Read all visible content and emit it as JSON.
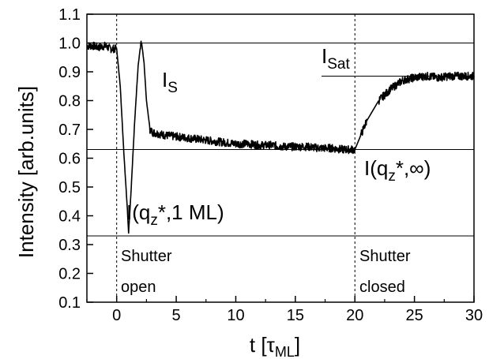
{
  "chart_data": {
    "type": "line",
    "xlabel": "t [τ",
    "xlabel_sub": "ML",
    "xlabel_close": "]",
    "ylabel": "Intensity [arb.units]",
    "xlim": [
      -2.5,
      30
    ],
    "ylim": [
      0.1,
      1.1
    ],
    "xticks": [
      0,
      5,
      10,
      15,
      20,
      25,
      30
    ],
    "yticks": [
      0.1,
      0.2,
      0.3,
      0.4,
      0.5,
      0.6,
      0.7,
      0.8,
      0.9,
      1.0,
      1.1
    ],
    "xtick_labels": [
      "0",
      "5",
      "10",
      "15",
      "20",
      "25",
      "30"
    ],
    "ytick_labels": [
      "0.1",
      "0.2",
      "0.3",
      "0.4",
      "0.5",
      "0.6",
      "0.7",
      "0.8",
      "0.9",
      "1.0",
      "1.1"
    ],
    "series": [
      {
        "x": [
          -2.5,
          -2.0,
          -1.5,
          -1.0,
          -0.5,
          0.0,
          0.3,
          0.6,
          0.9,
          1.0,
          1.2,
          1.5,
          1.8,
          2.0,
          2.1,
          2.3,
          2.5,
          2.8,
          3.0,
          3.5,
          4.0,
          5.0,
          6.0,
          7.0,
          8.0,
          9.0,
          10.0,
          11.0,
          12.0,
          13.0,
          14.0,
          15.0,
          16.0,
          17.0,
          18.0,
          19.0,
          20.0,
          20.5,
          21.0,
          22.0,
          23.0,
          24.0,
          25.0,
          26.0,
          27.0,
          28.0,
          29.0,
          30.0
        ],
        "y": [
          0.99,
          0.99,
          0.985,
          0.99,
          0.98,
          0.98,
          0.85,
          0.62,
          0.42,
          0.34,
          0.48,
          0.72,
          0.92,
          0.99,
          1.0,
          0.93,
          0.8,
          0.7,
          0.69,
          0.685,
          0.68,
          0.675,
          0.67,
          0.665,
          0.66,
          0.655,
          0.65,
          0.65,
          0.645,
          0.645,
          0.64,
          0.64,
          0.64,
          0.635,
          0.635,
          0.63,
          0.63,
          0.68,
          0.73,
          0.8,
          0.84,
          0.87,
          0.88,
          0.885,
          0.88,
          0.885,
          0.885,
          0.885
        ]
      }
    ],
    "reference_lines_y": [
      {
        "y": 1.0,
        "x_from": -2.5,
        "x_to": 30
      },
      {
        "y": 0.63,
        "x_from": -2.5,
        "x_to": 30
      },
      {
        "y": 0.33,
        "x_from": -2.5,
        "x_to": 30
      },
      {
        "y": 0.885,
        "x_from": 17.2,
        "x_to": 30
      }
    ],
    "vertical_markers_x": [
      0,
      20
    ],
    "annotations": {
      "is_main": "I",
      "is_sub": "S",
      "isat_main": "I",
      "isat_sub": "Sat",
      "iq1_a": "I(q",
      "iq1_sub": "z",
      "iq1_b": "*,1 ML)",
      "iqinf_a": "I(q",
      "iqinf_sub": "z",
      "iqinf_b": "*,∞)",
      "shutter_open_1": "Shutter",
      "shutter_open_2": "open",
      "shutter_closed_1": "Shutter",
      "shutter_closed_2": "closed"
    },
    "grid": false,
    "legend": "none"
  }
}
